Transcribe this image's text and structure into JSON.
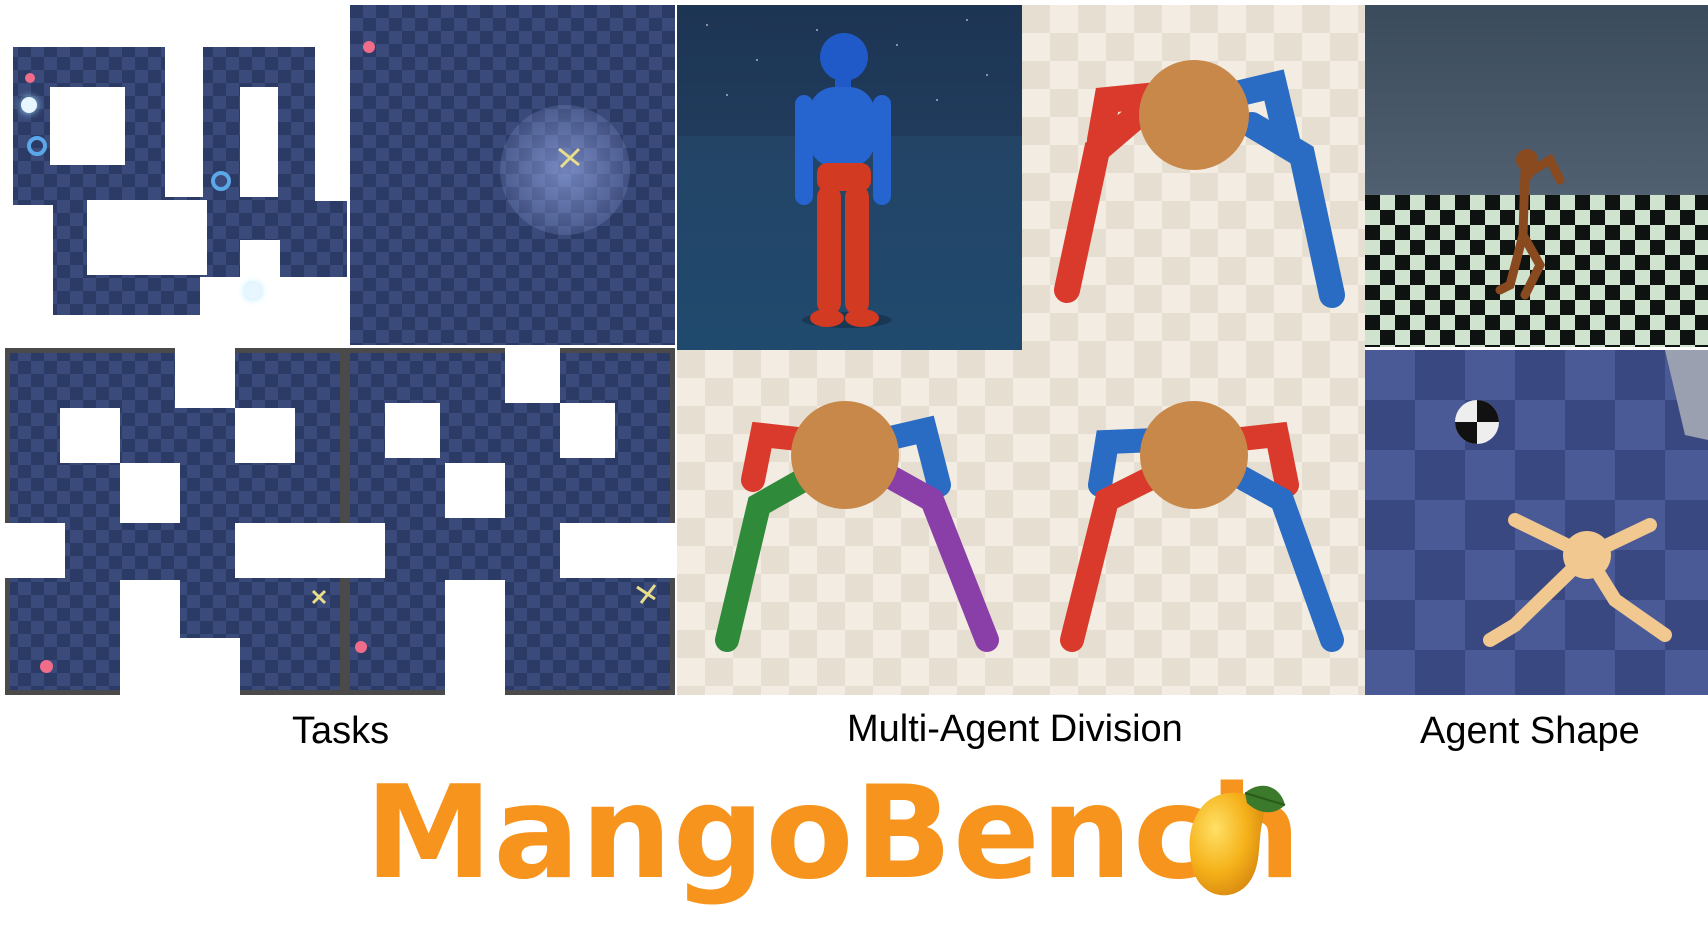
{
  "captions": {
    "tasks": "Tasks",
    "division": "Multi-Agent Division",
    "shape": "Agent Shape"
  },
  "title": "MangoBench",
  "icons": [
    "mango-icon",
    "humanoid-robot-icon",
    "ant-robot-icon",
    "maze-icon",
    "ball-icon"
  ],
  "colors": {
    "title": "#f7941d",
    "maze_floor": "#2c3a66",
    "ant_body": "#c8884a",
    "limb_red": "#d93a2b",
    "limb_blue": "#2a6bc4",
    "limb_green": "#2f8a3a",
    "limb_purple": "#8a3fa8"
  }
}
